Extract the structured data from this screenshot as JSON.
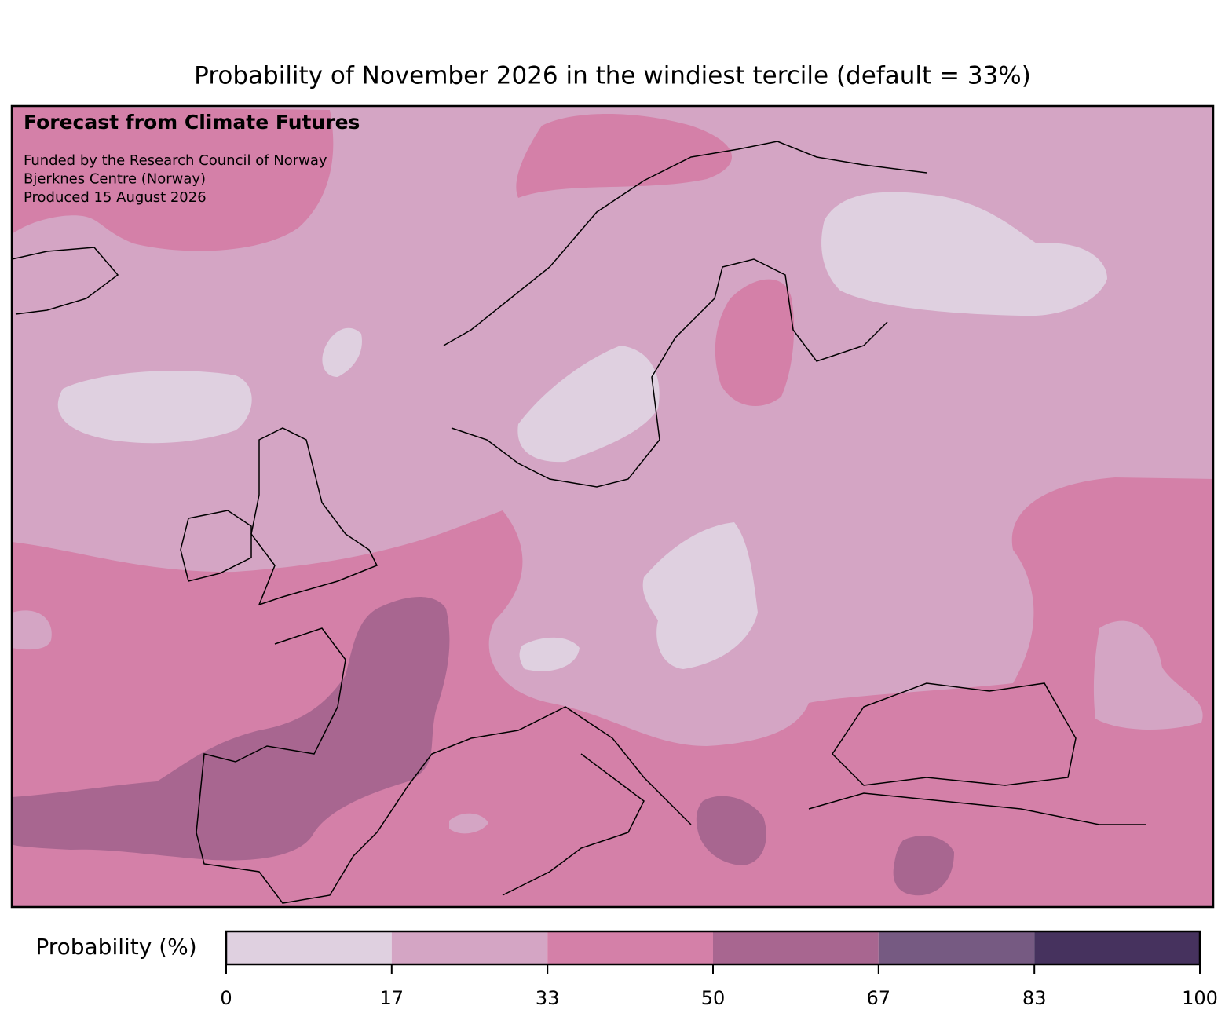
{
  "title": "Probability of November 2026 in the windiest tercile (default = 33%)",
  "annotations": {
    "heading": "Forecast from Climate Futures",
    "lines": [
      "Funded by the Research Council of Norway",
      "Bjerknes Centre (Norway)",
      "Produced 15 August 2026"
    ]
  },
  "colorbar": {
    "label": "Probability (%)",
    "ticks": [
      0,
      17,
      33,
      50,
      67,
      83,
      100
    ],
    "colors": [
      "#dfd0e0",
      "#d4a5c4",
      "#d480a8",
      "#a86690",
      "#765a82",
      "#46325e"
    ]
  }
}
